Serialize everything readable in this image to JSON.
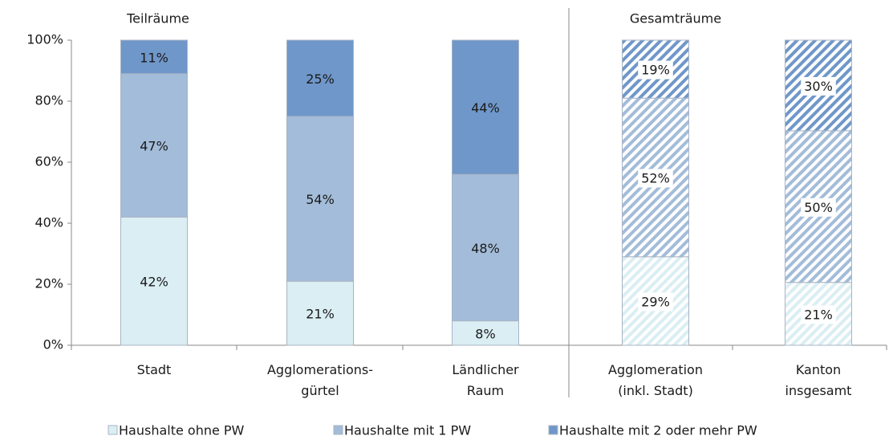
{
  "chart_data": {
    "type": "stacked_bar",
    "annotations": [
      "Teilräume",
      "Gesamträume"
    ],
    "categories": [
      [
        "Stadt"
      ],
      [
        "Agglomerations-",
        "gürtel"
      ],
      [
        "Ländlicher",
        "Raum"
      ],
      [
        "Agglomeration",
        "(inkl. Stadt)"
      ],
      [
        "Kanton",
        "insgesamt"
      ]
    ],
    "hatched": [
      false,
      false,
      false,
      true,
      true
    ],
    "series": [
      {
        "name": "Haushalte ohne PW",
        "color": "#daeef3",
        "values": [
          42,
          21,
          8,
          29,
          20.6
        ],
        "value_labels": [
          "42%",
          "21%",
          "8%",
          "29%",
          "21%"
        ]
      },
      {
        "name": "Haushalte mit 1 PW",
        "color": "#a3bcd9",
        "values": [
          47,
          54,
          48,
          52,
          49.7
        ],
        "value_labels": [
          "47%",
          "54%",
          "48%",
          "52%",
          "50%"
        ]
      },
      {
        "name": "Haushalte mit 2 oder mehr PW",
        "color": "#6f97c9",
        "values": [
          11,
          25,
          44,
          19,
          29.7
        ],
        "value_labels": [
          "11%",
          "25%",
          "44%",
          "19%",
          "30%"
        ]
      }
    ],
    "ylim": [
      0,
      100
    ],
    "yticks": [
      {
        "value": 0,
        "label": "0%"
      },
      {
        "value": 20,
        "label": "20%"
      },
      {
        "value": 40,
        "label": "40%"
      },
      {
        "value": 60,
        "label": "60%"
      },
      {
        "value": 80,
        "label": "80%"
      },
      {
        "value": 100,
        "label": "100%"
      }
    ],
    "legend": "bottom"
  }
}
